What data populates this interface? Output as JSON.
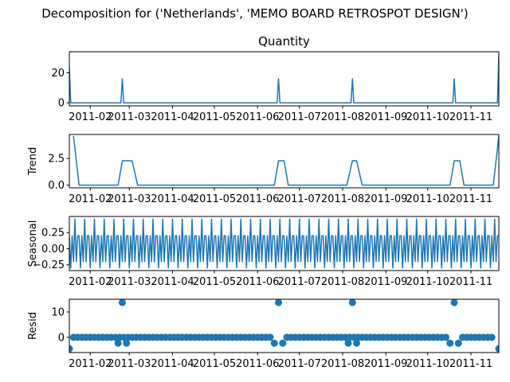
{
  "suptitle": "Decomposition for ('Netherlands', 'MEMO BOARD RETROSPOT  DESIGN')",
  "colors": {
    "line": "#1f77b4",
    "marker": "#1f77b4",
    "axis": "#000000",
    "background": "#ffffff"
  },
  "chart_data": [
    {
      "type": "line",
      "title": "Quantity",
      "ylabel": "",
      "xlim": [
        "2011-01-17",
        "2011-11-21"
      ],
      "ylim": [
        -2,
        34
      ],
      "yticks": [
        0,
        20
      ],
      "ytick_labels": [
        "0",
        "20"
      ],
      "xticks": [
        "2011-02-01",
        "2011-03-01",
        "2011-04-01",
        "2011-05-01",
        "2011-06-01",
        "2011-07-01",
        "2011-08-01",
        "2011-09-01",
        "2011-10-01",
        "2011-11-01"
      ],
      "xtick_labels": [
        "2011-02",
        "2011-03",
        "2011-04",
        "2011-05",
        "2011-06",
        "2011-07",
        "2011-08",
        "2011-09",
        "2011-10",
        "2011-11"
      ],
      "base": 0,
      "start": "2011-01-17",
      "end": "2011-11-21",
      "events": [
        {
          "date": "2011-01-17",
          "value": 24
        },
        {
          "date": "2011-02-24",
          "value": 16
        },
        {
          "date": "2011-06-16",
          "value": 16
        },
        {
          "date": "2011-08-08",
          "value": 16
        },
        {
          "date": "2011-10-20",
          "value": 16
        },
        {
          "date": "2011-11-21",
          "value": 32
        }
      ]
    },
    {
      "type": "line",
      "title": "",
      "ylabel": "Trend",
      "xlim": [
        "2011-01-17",
        "2011-11-21"
      ],
      "ylim": [
        -0.25,
        4.75
      ],
      "yticks": [
        0,
        2.5
      ],
      "ytick_labels": [
        "0.0",
        "2.5"
      ],
      "xticks": [
        "2011-02-01",
        "2011-03-01",
        "2011-04-01",
        "2011-05-01",
        "2011-06-01",
        "2011-07-01",
        "2011-08-01",
        "2011-09-01",
        "2011-10-01",
        "2011-11-01"
      ],
      "xtick_labels": [
        "2011-02",
        "2011-03",
        "2011-04",
        "2011-05",
        "2011-06",
        "2011-07",
        "2011-08",
        "2011-09",
        "2011-10",
        "2011-11"
      ],
      "x": [
        "2011-01-20",
        "2011-01-24",
        "2011-02-21",
        "2011-02-24",
        "2011-03-03",
        "2011-03-07",
        "2011-06-13",
        "2011-06-16",
        "2011-06-20",
        "2011-06-23",
        "2011-08-04",
        "2011-08-08",
        "2011-08-11",
        "2011-08-15",
        "2011-10-17",
        "2011-10-20",
        "2011-10-24",
        "2011-10-27",
        "2011-11-17",
        "2011-11-21"
      ],
      "y": [
        4.6,
        0,
        0,
        2.29,
        2.29,
        0,
        0,
        2.29,
        2.29,
        0,
        0,
        2.29,
        2.29,
        0,
        0,
        2.29,
        2.29,
        0,
        0,
        4.6
      ]
    },
    {
      "type": "line",
      "title": "",
      "ylabel": "Seasonal",
      "xlim": [
        "2011-01-17",
        "2011-11-21"
      ],
      "ylim": [
        -0.34,
        0.5
      ],
      "yticks": [
        -0.25,
        0,
        0.25
      ],
      "ytick_labels": [
        "−0.25",
        "0.00",
        "0.25"
      ],
      "xticks": [
        "2011-02-01",
        "2011-03-01",
        "2011-04-01",
        "2011-05-01",
        "2011-06-01",
        "2011-07-01",
        "2011-08-01",
        "2011-09-01",
        "2011-10-01",
        "2011-11-01"
      ],
      "xtick_labels": [
        "2011-02",
        "2011-03",
        "2011-04",
        "2011-05",
        "2011-06",
        "2011-07",
        "2011-08",
        "2011-09",
        "2011-10",
        "2011-11"
      ],
      "start": "2011-01-17",
      "step_days": 1,
      "pattern": [
        0.2,
        -0.3,
        0.2,
        -0.2,
        0.46,
        -0.2,
        0.2
      ]
    },
    {
      "type": "scatter",
      "title": "",
      "ylabel": "Resid",
      "xlim": [
        "2011-01-17",
        "2011-11-21"
      ],
      "ylim": [
        -6,
        15
      ],
      "yticks": [
        0,
        10
      ],
      "ytick_labels": [
        "0",
        "10"
      ],
      "xticks": [
        "2011-02-01",
        "2011-03-01",
        "2011-04-01",
        "2011-05-01",
        "2011-06-01",
        "2011-07-01",
        "2011-08-01",
        "2011-09-01",
        "2011-10-01",
        "2011-11-01"
      ],
      "xtick_labels": [
        "2011-02",
        "2011-03",
        "2011-04",
        "2011-05",
        "2011-06",
        "2011-07",
        "2011-08",
        "2011-09",
        "2011-10",
        "2011-11"
      ],
      "base": 0,
      "step_days": 3,
      "start": "2011-01-20",
      "end": "2011-11-17",
      "points": [
        {
          "date": "2011-01-17",
          "value": -4.5
        },
        {
          "date": "2011-02-21",
          "value": -2.3
        },
        {
          "date": "2011-02-24",
          "value": 13.7
        },
        {
          "date": "2011-02-27",
          "value": -2.3
        },
        {
          "date": "2011-06-13",
          "value": -2.3
        },
        {
          "date": "2011-06-16",
          "value": 13.7
        },
        {
          "date": "2011-06-19",
          "value": -2.3
        },
        {
          "date": "2011-08-05",
          "value": -2.3
        },
        {
          "date": "2011-08-08",
          "value": 13.7
        },
        {
          "date": "2011-08-11",
          "value": -2.3
        },
        {
          "date": "2011-10-17",
          "value": -2.3
        },
        {
          "date": "2011-10-20",
          "value": 13.7
        },
        {
          "date": "2011-10-23",
          "value": -2.3
        },
        {
          "date": "2011-11-21",
          "value": -4.5
        }
      ]
    }
  ]
}
